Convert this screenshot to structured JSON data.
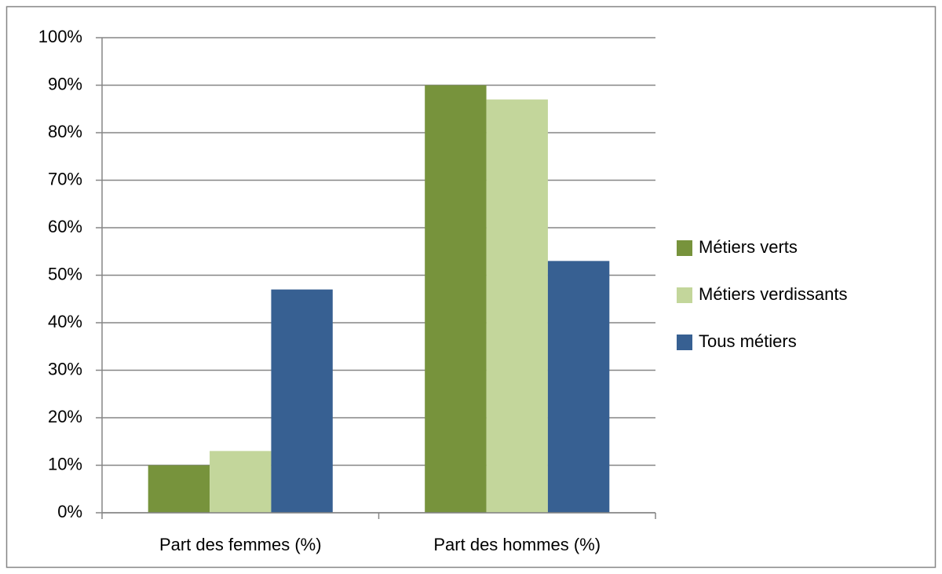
{
  "chart_data": {
    "type": "bar",
    "categories": [
      "Part des femmes (%)",
      "Part des hommes (%)"
    ],
    "series": [
      {
        "name": "Métiers verts",
        "color": "#77933c",
        "values": [
          10,
          90
        ]
      },
      {
        "name": "Métiers verdissants",
        "color": "#c3d69b",
        "values": [
          13,
          87
        ]
      },
      {
        "name": "Tous métiers",
        "color": "#376092",
        "values": [
          47,
          53
        ]
      }
    ],
    "ylim": [
      0,
      100
    ],
    "yticks": [
      {
        "value": 0,
        "label": "0%"
      },
      {
        "value": 10,
        "label": "10%"
      },
      {
        "value": 20,
        "label": "20%"
      },
      {
        "value": 30,
        "label": "30%"
      },
      {
        "value": 40,
        "label": "40%"
      },
      {
        "value": 50,
        "label": "50%"
      },
      {
        "value": 60,
        "label": "60%"
      },
      {
        "value": 70,
        "label": "70%"
      },
      {
        "value": 80,
        "label": "80%"
      },
      {
        "value": 90,
        "label": "90%"
      },
      {
        "value": 100,
        "label": "100%"
      }
    ],
    "grid": true,
    "legend": "right"
  }
}
